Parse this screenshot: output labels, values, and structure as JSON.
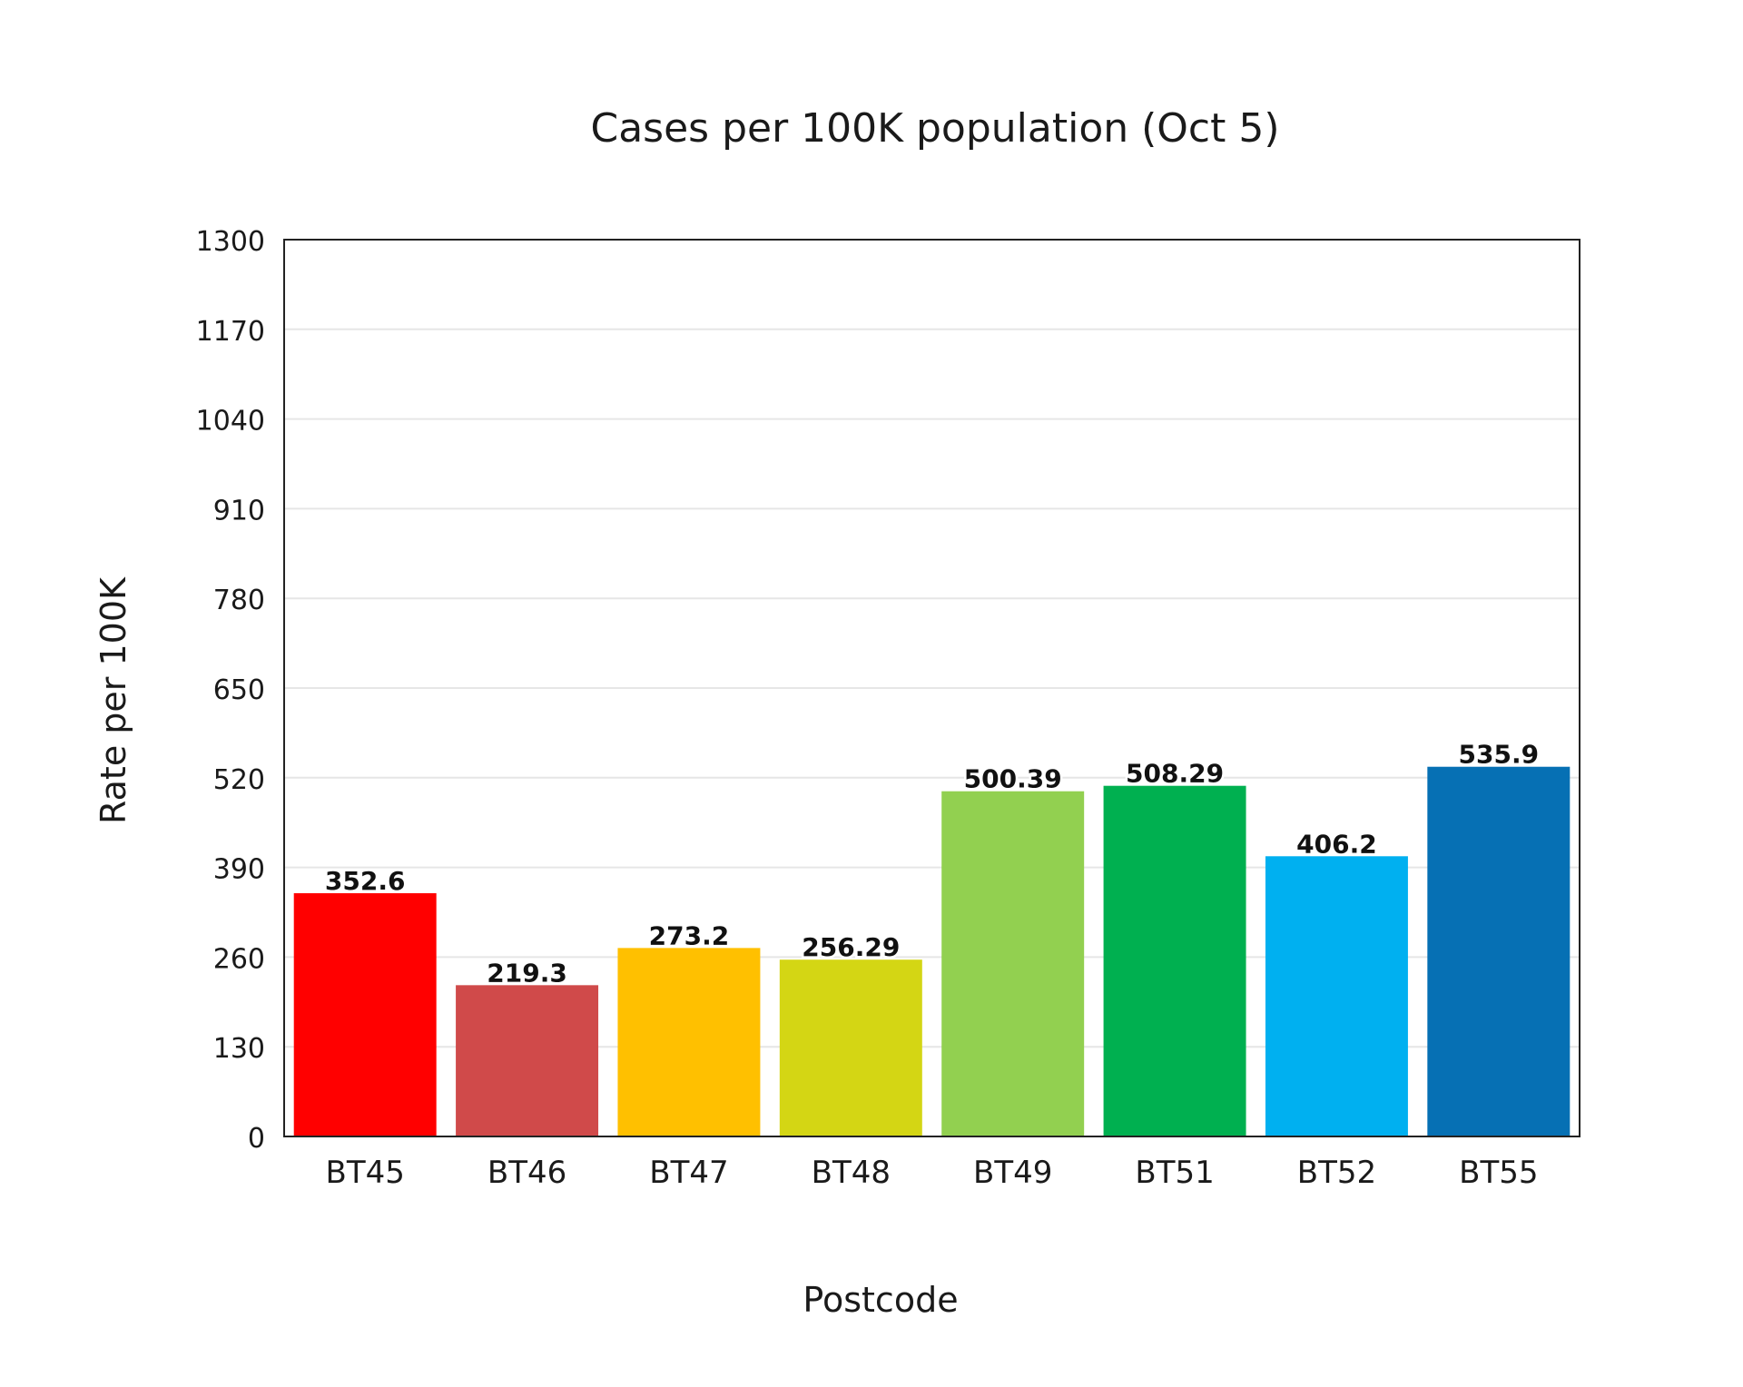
{
  "chart_data": {
    "type": "bar",
    "title": "Cases per 100K population (Oct 5)",
    "xlabel": "Postcode",
    "ylabel": "Rate per 100K",
    "categories": [
      "BT45",
      "BT46",
      "BT47",
      "BT48",
      "BT49",
      "BT51",
      "BT52",
      "BT55"
    ],
    "values": [
      352.6,
      219.3,
      273.2,
      256.29,
      500.39,
      508.29,
      406.2,
      535.9
    ],
    "data_labels": [
      "352.6",
      "219.3",
      "273.2",
      "256.29",
      "500.39",
      "508.29",
      "406.2",
      "535.9"
    ],
    "colors": [
      "#ff0000",
      "#d04a4a",
      "#ffc000",
      "#d4d614",
      "#92d050",
      "#00b050",
      "#00b0f0",
      "#0670b4"
    ],
    "ylim": [
      0,
      1300
    ],
    "yticks": [
      0,
      130,
      260,
      390,
      520,
      650,
      780,
      910,
      1040,
      1170,
      1300
    ],
    "grid": true,
    "legend": "none"
  }
}
